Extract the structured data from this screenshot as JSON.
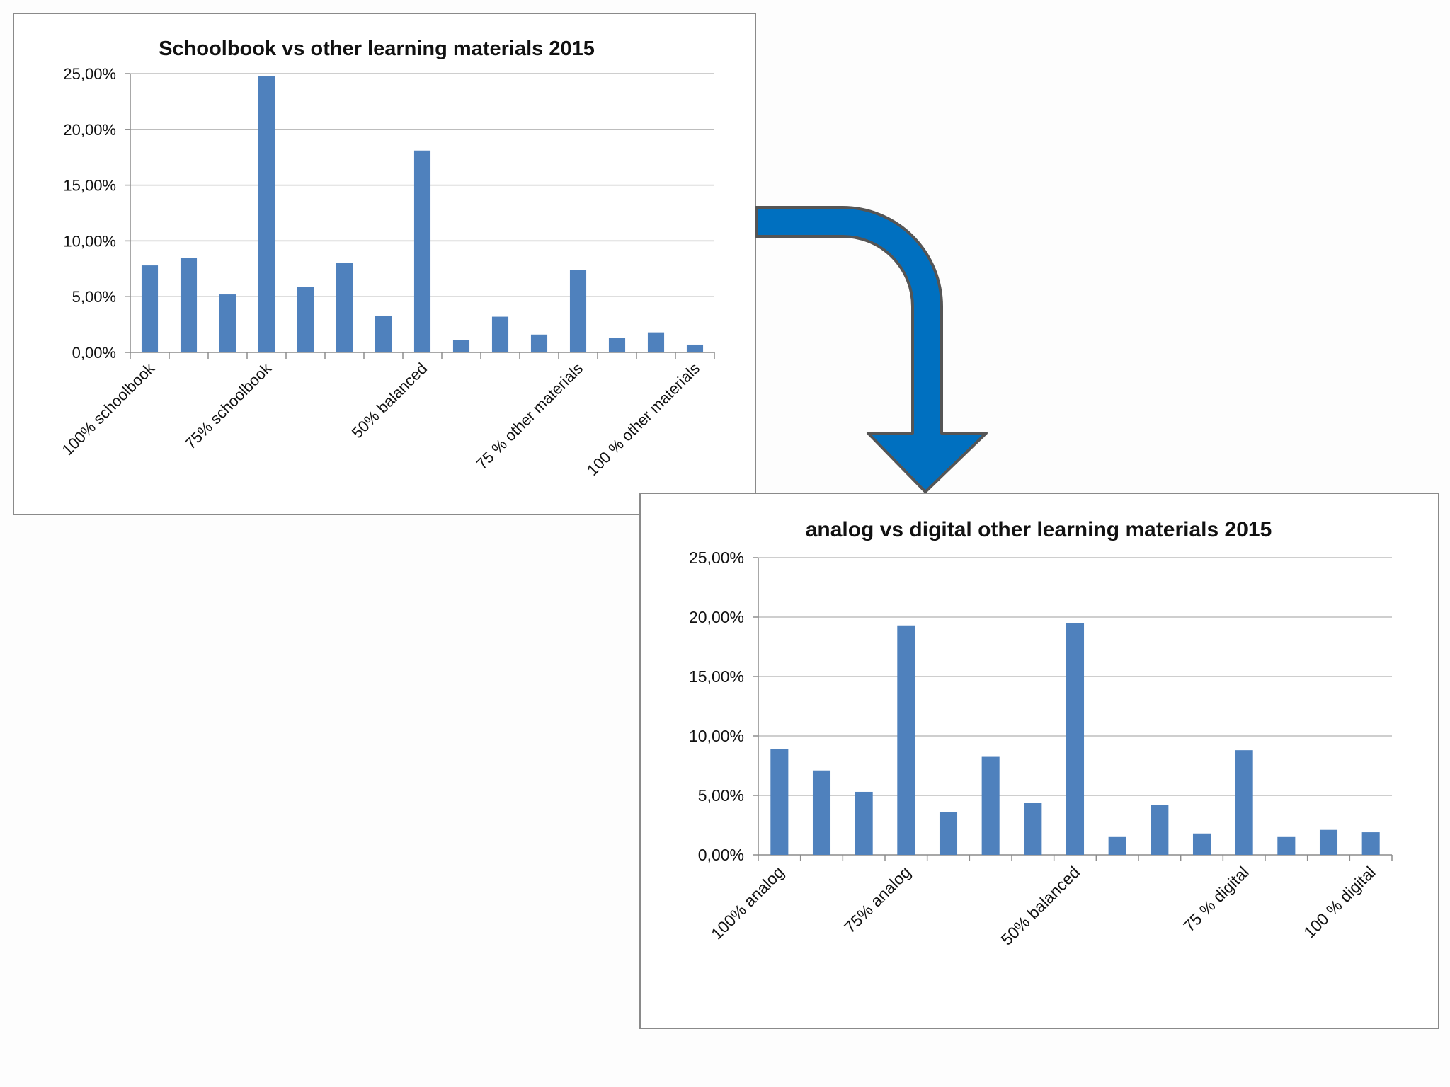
{
  "chart_data": [
    {
      "type": "bar",
      "title": "Schoolbook vs other learning materials 2015",
      "categories": [
        "100% schoolbook",
        "",
        "",
        "75% schoolbook",
        "",
        "",
        "",
        "50% balanced",
        "",
        "",
        "",
        "75 % other materials",
        "",
        "",
        "100 % other materials"
      ],
      "values": [
        7.8,
        8.5,
        5.2,
        24.8,
        5.9,
        8.0,
        3.3,
        18.1,
        1.1,
        3.2,
        1.6,
        7.4,
        1.3,
        1.8,
        0.7
      ],
      "ylim": [
        0,
        25
      ],
      "yticks": [
        "0,00%",
        "5,00%",
        "10,00%",
        "15,00%",
        "20,00%",
        "25,00%"
      ],
      "xlabel": "",
      "ylabel": "",
      "grid": true,
      "bar_color": "#4f81bd"
    },
    {
      "type": "bar",
      "title": "analog vs digital other learning materials 2015",
      "categories": [
        "100%  analog",
        "",
        "",
        "75% analog",
        "",
        "",
        "",
        "50% balanced",
        "",
        "",
        "",
        "75 % digital",
        "",
        "",
        "100 % digital"
      ],
      "values": [
        8.9,
        7.1,
        5.3,
        19.3,
        3.6,
        8.3,
        4.4,
        19.5,
        1.5,
        4.2,
        1.8,
        8.8,
        1.5,
        2.1,
        1.9
      ],
      "ylim": [
        0,
        25
      ],
      "yticks": [
        "0,00%",
        "5,00%",
        "10,00%",
        "15,00%",
        "20,00%",
        "25,00%"
      ],
      "xlabel": "",
      "ylabel": "",
      "grid": true,
      "bar_color": "#4f81bd"
    }
  ],
  "arrow": {
    "fill": "#0070c0",
    "stroke": "#555555",
    "icon": "curved-arrow-down-icon"
  }
}
